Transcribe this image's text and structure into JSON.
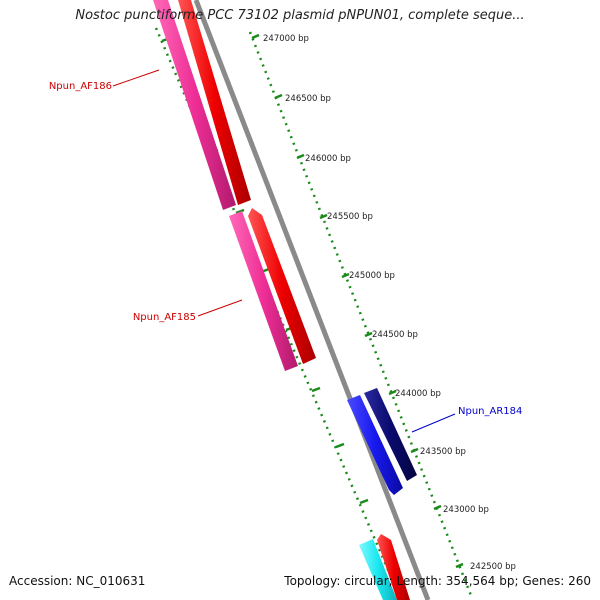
{
  "title": "Nostoc punctiforme PCC 73102 plasmid pNPUN01, complete seque...",
  "footer": {
    "accession": "Accession: NC_010631",
    "summary": "Topology: circular; Length: 354,564 bp; Genes: 260"
  },
  "ticks": [
    {
      "label": "247000 bp"
    },
    {
      "label": "246500 bp"
    },
    {
      "label": "246000 bp"
    },
    {
      "label": "245500 bp"
    },
    {
      "label": "245000 bp"
    },
    {
      "label": "244500 bp"
    },
    {
      "label": "244000 bp"
    },
    {
      "label": "243500 bp"
    },
    {
      "label": "243000 bp"
    },
    {
      "label": "242500 bp"
    }
  ],
  "genes": [
    {
      "name": "Npun_AF186",
      "strand": "forward",
      "label_color": "#cc0000"
    },
    {
      "name": "Npun_AF185",
      "strand": "forward",
      "label_color": "#cc0000"
    },
    {
      "name": "Npun_AR184",
      "strand": "reverse",
      "label_color": "#0000cc"
    }
  ],
  "colors": {
    "backbone": "#8a8a8a",
    "cds_forward": "#ee0000",
    "gene_forward": "#ee2e96",
    "cds_reverse": "#0a0a6e",
    "gene_reverse": "#1818ee",
    "gene_other": "#19e8f0",
    "ticks": "#1a8a1a"
  }
}
